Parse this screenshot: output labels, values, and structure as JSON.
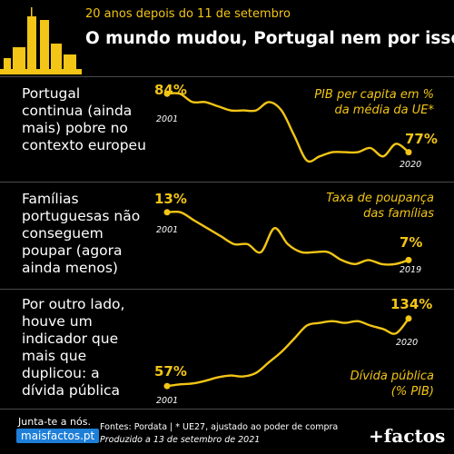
{
  "header": {
    "subtitle": "20 anos depois do 11 de setembro",
    "title": "O mundo mudou, Portugal nem por isso"
  },
  "rows": [
    {
      "text_lines": [
        "Portugal",
        "continua (ainda",
        "mais) pobre no",
        "contexto europeu"
      ],
      "label_lines": [
        "PIB per capita em %",
        "da média da UE*"
      ],
      "start_value": "84%",
      "end_value": "77%",
      "start_year": "2001",
      "end_year": "2020"
    },
    {
      "text_lines": [
        "Famílias",
        "portuguesas não",
        "conseguem",
        "poupar (agora",
        "ainda menos)"
      ],
      "label_lines": [
        "Taxa de poupança",
        "das famílias"
      ],
      "start_value": "13%",
      "end_value": "7%",
      "start_year": "2001",
      "end_year": "2019"
    },
    {
      "text_lines": [
        "Por outro lado,",
        "houve um",
        "indicador que",
        "mais que",
        "duplicou: a",
        "dívida pública"
      ],
      "label_lines": [
        "Dívida pública",
        "(% PIB)"
      ],
      "start_value": "57%",
      "end_value": "134%",
      "start_year": "2001",
      "end_year": "2020"
    }
  ],
  "chart_data": [
    {
      "type": "line",
      "series": [
        {
          "x": [
            2001,
            2002,
            2003,
            2004,
            2005,
            2006,
            2007,
            2008,
            2009,
            2010,
            2011,
            2012,
            2013,
            2014,
            2015,
            2016,
            2017,
            2018,
            2019,
            2020
          ],
          "values": [
            84,
            84,
            83,
            83,
            82.5,
            82,
            82,
            82,
            83,
            82,
            79,
            76,
            76.5,
            77,
            77,
            77,
            77.5,
            76.5,
            78,
            77
          ]
        }
      ],
      "ylim": [
        75,
        85
      ]
    },
    {
      "type": "line",
      "series": [
        {
          "x": [
            2001,
            2002,
            2003,
            2004,
            2005,
            2006,
            2007,
            2008,
            2009,
            2010,
            2011,
            2012,
            2013,
            2014,
            2015,
            2016,
            2017,
            2018,
            2019
          ],
          "values": [
            13,
            13,
            12,
            11,
            10,
            9,
            9,
            8,
            11,
            9,
            8,
            8,
            8,
            7,
            6.5,
            7,
            6.5,
            6.5,
            7
          ]
        }
      ],
      "ylim": [
        5,
        14
      ]
    },
    {
      "type": "line",
      "series": [
        {
          "x": [
            2001,
            2002,
            2003,
            2004,
            2005,
            2006,
            2007,
            2008,
            2009,
            2010,
            2011,
            2012,
            2013,
            2014,
            2015,
            2016,
            2017,
            2018,
            2019,
            2020
          ],
          "values": [
            57,
            59,
            60,
            63,
            67,
            69,
            68,
            72,
            84,
            96,
            111,
            126,
            129,
            131,
            129,
            131,
            126,
            122,
            117,
            134
          ]
        }
      ],
      "ylim": [
        50,
        140
      ]
    }
  ],
  "footer": {
    "source": "Fontes: Pordata | * UE27, ajustado ao poder de compra",
    "date": "Produzido a 13 de setembro de 2021",
    "cta_line1": "Junta-te a nós.",
    "cta_line2": "maisfactos.pt",
    "brand": "+factos"
  },
  "colors": {
    "accent": "#f2c516",
    "background": "#000000",
    "divider": "#4a4a4a",
    "cta": "#1e7fd8"
  }
}
